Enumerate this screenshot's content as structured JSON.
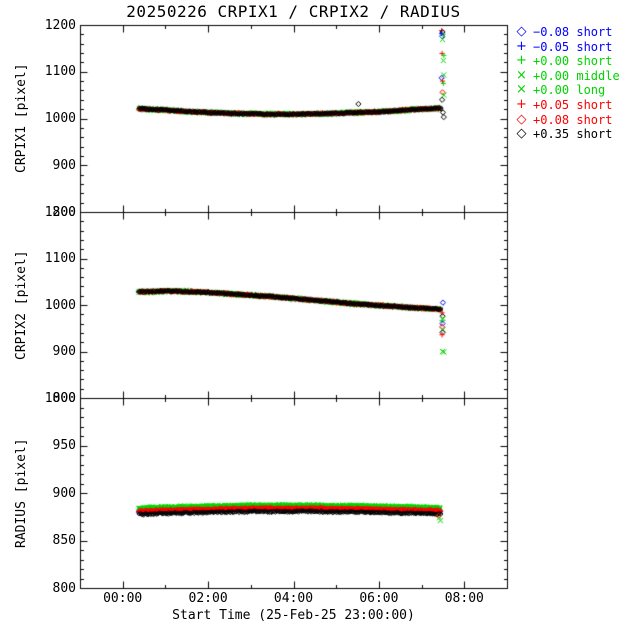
{
  "title": "20250226 CRPIX1 / CRPIX2 / RADIUS",
  "x_axis": {
    "label": "Start Time (25-Feb-25 23:00:00)",
    "tick_labels": [
      "00:00",
      "02:00",
      "04:00",
      "06:00",
      "08:00"
    ],
    "tick_hours": [
      0,
      2,
      4,
      6,
      8
    ],
    "minor_tick_hours": 1,
    "range_hours": [
      -1,
      9
    ]
  },
  "palette": {
    "blue": "#0000ff",
    "green": "#00d500",
    "red": "#ff0000",
    "black": "#000000"
  },
  "legend": [
    {
      "marker": "diamond",
      "color": "blue",
      "label": "−0.08 short"
    },
    {
      "marker": "plus",
      "color": "blue",
      "label": "−0.05 short"
    },
    {
      "marker": "plus",
      "color": "green",
      "label": "+0.00 short"
    },
    {
      "marker": "cross",
      "color": "green",
      "label": "+0.00 middle"
    },
    {
      "marker": "cross",
      "color": "green",
      "label": "+0.00 long"
    },
    {
      "marker": "plus",
      "color": "red",
      "label": "+0.05 short"
    },
    {
      "marker": "diamond",
      "color": "red",
      "label": "+0.08 short"
    },
    {
      "marker": "diamond",
      "color": "black",
      "label": "+0.35 short"
    }
  ],
  "chart_data": [
    {
      "type": "scatter",
      "name": "CRPIX1",
      "ylabel": "CRPIX1 [pixel]",
      "ylim": [
        800,
        1200
      ],
      "yticks": [
        800,
        900,
        1000,
        1100,
        1200
      ],
      "ytick_minor": 20,
      "trend_t": [
        0.37,
        1,
        1.5,
        2,
        2.5,
        3,
        3.5,
        4,
        4.5,
        5,
        5.5,
        6,
        6.5,
        7,
        7.45
      ],
      "trend_y": [
        1021,
        1018,
        1015,
        1013,
        1011,
        1010,
        1009,
        1009,
        1010,
        1011,
        1013,
        1014,
        1017,
        1020,
        1022
      ],
      "spread": 2.2,
      "series_offsets": [
        0,
        0,
        0,
        0,
        0,
        0,
        0,
        0
      ],
      "series_spread_mult": [
        1,
        1,
        1.6,
        1.6,
        1.6,
        1.1,
        1.1,
        1
      ],
      "outliers": [
        {
          "t": 7.47,
          "y": 1188,
          "series": 5
        },
        {
          "t": 7.49,
          "y": 1185,
          "series": 7
        },
        {
          "t": 7.47,
          "y": 1182,
          "series": 1
        },
        {
          "t": 7.5,
          "y": 1180,
          "series": 2
        },
        {
          "t": 7.48,
          "y": 1176,
          "series": 0
        },
        {
          "t": 7.49,
          "y": 1169,
          "series": 3
        },
        {
          "t": 7.48,
          "y": 1139,
          "series": 5
        },
        {
          "t": 7.52,
          "y": 1135,
          "series": 2
        },
        {
          "t": 7.51,
          "y": 1124,
          "series": 4
        },
        {
          "t": 7.52,
          "y": 1093,
          "series": 3
        },
        {
          "t": 7.47,
          "y": 1087,
          "series": 0
        },
        {
          "t": 7.49,
          "y": 1080,
          "series": 5
        },
        {
          "t": 7.51,
          "y": 1075,
          "series": 2
        },
        {
          "t": 7.49,
          "y": 1056,
          "series": 6
        },
        {
          "t": 7.52,
          "y": 1050,
          "series": 3
        },
        {
          "t": 7.48,
          "y": 1040,
          "series": 7
        },
        {
          "t": 7.5,
          "y": 1013,
          "series": 7
        },
        {
          "t": 7.52,
          "y": 1003,
          "series": 7
        },
        {
          "t": 5.52,
          "y": 1031,
          "series": 7
        }
      ]
    },
    {
      "type": "scatter",
      "name": "CRPIX2",
      "ylabel": "CRPIX2 [pixel]",
      "ylim": [
        800,
        1200
      ],
      "yticks": [
        800,
        900,
        1000,
        1100,
        1200
      ],
      "ytick_minor": 20,
      "trend_t": [
        0.37,
        1,
        1.5,
        2,
        2.5,
        3,
        3.5,
        4,
        4.5,
        5,
        5.5,
        6,
        6.5,
        7,
        7.45
      ],
      "trend_y": [
        1028,
        1030,
        1029,
        1027,
        1024,
        1021,
        1018,
        1014,
        1010,
        1006,
        1002,
        999,
        996,
        993,
        991
      ],
      "spread": 2.2,
      "series_offsets": [
        0,
        0,
        0,
        0,
        0,
        0,
        0,
        0
      ],
      "series_spread_mult": [
        1,
        1,
        1.6,
        1.6,
        1.6,
        1.1,
        1.1,
        1
      ],
      "outliers": [
        {
          "t": 7.5,
          "y": 1005,
          "series": 0
        },
        {
          "t": 7.48,
          "y": 983,
          "series": 5
        },
        {
          "t": 7.49,
          "y": 976,
          "series": 7
        },
        {
          "t": 7.5,
          "y": 971,
          "series": 3
        },
        {
          "t": 7.48,
          "y": 966,
          "series": 2
        },
        {
          "t": 7.49,
          "y": 960,
          "series": 0
        },
        {
          "t": 7.48,
          "y": 953,
          "series": 6
        },
        {
          "t": 7.5,
          "y": 947,
          "series": 4
        },
        {
          "t": 7.49,
          "y": 941,
          "series": 7
        },
        {
          "t": 7.48,
          "y": 936,
          "series": 5
        },
        {
          "t": 7.49,
          "y": 900,
          "series": 3
        },
        {
          "t": 7.52,
          "y": 899,
          "series": 4
        }
      ]
    },
    {
      "type": "scatter",
      "name": "RADIUS",
      "ylabel": "RADIUS [pixel]",
      "ylim": [
        800,
        1000
      ],
      "yticks": [
        800,
        850,
        900,
        950,
        1000
      ],
      "ytick_minor": 10,
      "trend_t": [
        0.37,
        1,
        1.5,
        2,
        2.5,
        3,
        3.5,
        4,
        4.5,
        5,
        5.5,
        6,
        6.5,
        7,
        7.45
      ],
      "trend_y": [
        880.5,
        881.5,
        882,
        882.5,
        883,
        883.5,
        883.5,
        883.5,
        883.5,
        883,
        883,
        882.5,
        882,
        881.5,
        881
      ],
      "spread": 1.1,
      "series_offsets": [
        -0.5,
        -0.5,
        3.5,
        3.5,
        3.5,
        0.5,
        0.5,
        -3
      ],
      "series_spread_mult": [
        1,
        1,
        1.3,
        1.3,
        1.3,
        1,
        1,
        1
      ],
      "outliers": [
        {
          "t": 7.42,
          "y": 874,
          "series": 3
        },
        {
          "t": 7.4,
          "y": 876,
          "series": 6
        },
        {
          "t": 7.44,
          "y": 871,
          "series": 3
        }
      ]
    }
  ]
}
